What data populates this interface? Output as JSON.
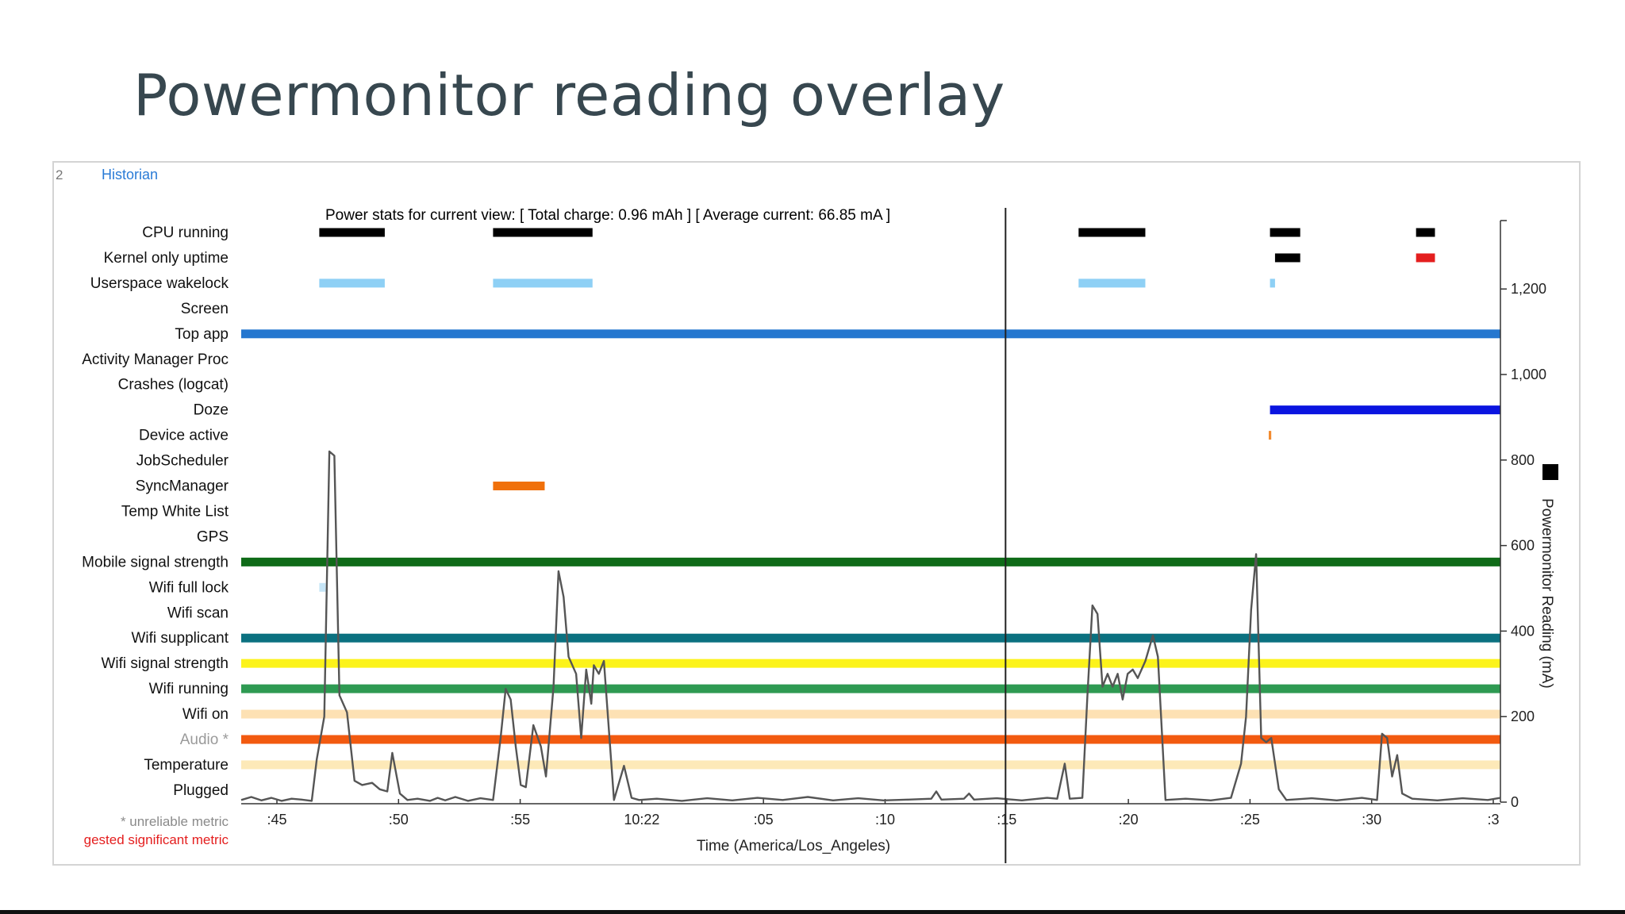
{
  "slide": {
    "title": "Powermonitor reading overlay"
  },
  "historian": {
    "tab_number": "2",
    "tab_label": "Historian",
    "power_stats": "Power stats for current view: [ Total charge: 0.96 mAh ] [ Average current: 66.85 mA ]",
    "footnote_unreliable": "* unreliable metric",
    "footnote_suggested": "gested significant metric",
    "x_axis_title": "Time (America/Los_Angeles)",
    "y_axis_title": "Powermonitor Reading (mA)"
  },
  "chart_data": {
    "type": "line",
    "title": "Power stats for current view: [ Total charge: 0.96 mAh ] [ Average current: 66.85 mA ]",
    "xlabel": "Time (America/Los_Angeles)",
    "ylabel": "Powermonitor Reading (mA)",
    "x_ticks": [
      ":45",
      ":50",
      ":55",
      "10:22",
      ":05",
      ":10",
      ":15",
      ":20",
      ":25",
      ":30",
      ":3"
    ],
    "y_ticks": [
      "0",
      "200",
      "400",
      "600",
      "800",
      "1,000",
      "1,200"
    ],
    "ylim": [
      0,
      1360
    ],
    "xlim": [
      0,
      100
    ],
    "grid": false,
    "cursor_x": 60.7,
    "series": [
      {
        "name": "Powermonitor Reading (mA)",
        "color": "#555555",
        "points": [
          [
            0,
            5
          ],
          [
            0.8,
            12
          ],
          [
            1.6,
            4
          ],
          [
            2.4,
            10
          ],
          [
            3.2,
            3
          ],
          [
            4.0,
            8
          ],
          [
            4.8,
            6
          ],
          [
            5.6,
            3
          ],
          [
            6.0,
            100
          ],
          [
            6.6,
            200
          ],
          [
            7.0,
            820
          ],
          [
            7.4,
            810
          ],
          [
            7.8,
            250
          ],
          [
            8.4,
            210
          ],
          [
            9.0,
            50
          ],
          [
            9.6,
            40
          ],
          [
            10.4,
            45
          ],
          [
            11.0,
            30
          ],
          [
            11.6,
            25
          ],
          [
            12.0,
            115
          ],
          [
            12.6,
            20
          ],
          [
            13.2,
            5
          ],
          [
            14.0,
            8
          ],
          [
            15.0,
            3
          ],
          [
            15.6,
            10
          ],
          [
            16.2,
            4
          ],
          [
            17.0,
            12
          ],
          [
            18.0,
            3
          ],
          [
            19.0,
            9
          ],
          [
            20.0,
            5
          ],
          [
            20.6,
            150
          ],
          [
            21.0,
            265
          ],
          [
            21.4,
            240
          ],
          [
            21.8,
            130
          ],
          [
            22.2,
            40
          ],
          [
            22.6,
            35
          ],
          [
            23.2,
            180
          ],
          [
            23.8,
            130
          ],
          [
            24.2,
            60
          ],
          [
            24.8,
            270
          ],
          [
            25.2,
            540
          ],
          [
            25.6,
            480
          ],
          [
            26.0,
            340
          ],
          [
            26.6,
            300
          ],
          [
            27.0,
            150
          ],
          [
            27.4,
            310
          ],
          [
            27.8,
            230
          ],
          [
            28.0,
            320
          ],
          [
            28.4,
            300
          ],
          [
            28.8,
            330
          ],
          [
            29.6,
            5
          ],
          [
            30.4,
            85
          ],
          [
            31.0,
            10
          ],
          [
            31.6,
            5
          ],
          [
            33.0,
            8
          ],
          [
            35.0,
            3
          ],
          [
            37.0,
            9
          ],
          [
            39.0,
            4
          ],
          [
            41.0,
            10
          ],
          [
            43.0,
            5
          ],
          [
            45.0,
            12
          ],
          [
            47.0,
            4
          ],
          [
            49.0,
            9
          ],
          [
            51.0,
            4
          ],
          [
            53.0,
            6
          ],
          [
            54.8,
            8
          ],
          [
            55.2,
            25
          ],
          [
            55.6,
            6
          ],
          [
            57.4,
            8
          ],
          [
            57.8,
            20
          ],
          [
            58.2,
            6
          ],
          [
            60.0,
            9
          ],
          [
            62.0,
            4
          ],
          [
            64.0,
            10
          ],
          [
            64.8,
            8
          ],
          [
            65.4,
            90
          ],
          [
            65.8,
            8
          ],
          [
            66.8,
            10
          ],
          [
            67.2,
            250
          ],
          [
            67.6,
            460
          ],
          [
            68.0,
            440
          ],
          [
            68.4,
            270
          ],
          [
            68.8,
            300
          ],
          [
            69.2,
            270
          ],
          [
            69.6,
            300
          ],
          [
            70.0,
            240
          ],
          [
            70.4,
            300
          ],
          [
            70.8,
            310
          ],
          [
            71.2,
            290
          ],
          [
            71.8,
            330
          ],
          [
            72.4,
            390
          ],
          [
            72.8,
            340
          ],
          [
            73.4,
            5
          ],
          [
            75.0,
            8
          ],
          [
            77.0,
            4
          ],
          [
            78.6,
            10
          ],
          [
            79.4,
            90
          ],
          [
            79.8,
            200
          ],
          [
            80.2,
            450
          ],
          [
            80.6,
            580
          ],
          [
            81.0,
            150
          ],
          [
            81.4,
            140
          ],
          [
            81.8,
            150
          ],
          [
            82.4,
            30
          ],
          [
            83.0,
            5
          ],
          [
            85.0,
            9
          ],
          [
            87.0,
            4
          ],
          [
            89.0,
            10
          ],
          [
            90.2,
            5
          ],
          [
            90.6,
            160
          ],
          [
            91.0,
            150
          ],
          [
            91.4,
            60
          ],
          [
            91.8,
            110
          ],
          [
            92.2,
            20
          ],
          [
            93.0,
            8
          ],
          [
            95.0,
            4
          ],
          [
            97.0,
            9
          ],
          [
            99.0,
            5
          ],
          [
            100,
            10
          ]
        ]
      }
    ]
  },
  "rows": [
    {
      "label": "CPU running",
      "color": "#000000",
      "segments": [
        [
          6.2,
          11.4
        ],
        [
          20.0,
          27.9
        ],
        [
          66.5,
          71.8
        ],
        [
          81.7,
          84.1
        ],
        [
          93.3,
          94.8
        ]
      ]
    },
    {
      "label": "Kernel only uptime",
      "color": "#000000",
      "segments": [
        [
          82.1,
          84.1
        ]
      ],
      "extra": {
        "color": "#e41e1e",
        "segments": [
          [
            93.3,
            94.8
          ]
        ]
      }
    },
    {
      "label": "Userspace wakelock",
      "color": "#8ed0f5",
      "segments": [
        [
          6.2,
          11.4
        ],
        [
          20.0,
          27.9
        ],
        [
          66.5,
          71.8
        ],
        [
          81.7,
          82.1
        ]
      ]
    },
    {
      "label": "Screen",
      "color": "#000000",
      "segments": []
    },
    {
      "label": "Top app",
      "color": "#2577cf",
      "segments": [
        [
          0,
          100
        ]
      ]
    },
    {
      "label": "Activity Manager Proc",
      "color": "#000000",
      "segments": []
    },
    {
      "label": "Crashes (logcat)",
      "color": "#000000",
      "segments": []
    },
    {
      "label": "Doze",
      "color": "#0a14e0",
      "segments": [
        [
          81.7,
          100
        ]
      ]
    },
    {
      "label": "Device active",
      "color": "#f28b30",
      "segments": [
        [
          81.6,
          81.8
        ]
      ]
    },
    {
      "label": "JobScheduler",
      "color": "#000000",
      "segments": []
    },
    {
      "label": "SyncManager",
      "color": "#f0700a",
      "segments": [
        [
          20.0,
          24.1
        ]
      ]
    },
    {
      "label": "Temp White List",
      "color": "#000000",
      "segments": []
    },
    {
      "label": "GPS",
      "color": "#000000",
      "segments": []
    },
    {
      "label": "Mobile signal strength",
      "color": "#0f6b18",
      "segments": [
        [
          0,
          100
        ]
      ]
    },
    {
      "label": "Wifi full lock",
      "color": "#c6e5f7",
      "segments": [
        [
          6.2,
          6.7
        ]
      ]
    },
    {
      "label": "Wifi scan",
      "color": "#000000",
      "segments": []
    },
    {
      "label": "Wifi supplicant",
      "color": "#0b7180",
      "segments": [
        [
          0,
          100
        ]
      ]
    },
    {
      "label": "Wifi signal strength",
      "color": "#fcf31a",
      "segments": [
        [
          0,
          100
        ]
      ]
    },
    {
      "label": "Wifi running",
      "color": "#2e9a52",
      "segments": [
        [
          0,
          100
        ]
      ]
    },
    {
      "label": "Wifi on",
      "color": "#fde1b4",
      "segments": [
        [
          0,
          100
        ]
      ]
    },
    {
      "label": "Audio *",
      "color": "#f25a10",
      "segments": [
        [
          0,
          100
        ]
      ],
      "label_color": "#9a9a9a"
    },
    {
      "label": "Temperature",
      "color": "#fde9b8",
      "segments": [
        [
          0,
          100
        ]
      ]
    },
    {
      "label": "Plugged",
      "color": "#000000",
      "segments": []
    }
  ],
  "colors": {
    "title": "#37474f",
    "accent_link": "#2a7bd6",
    "footnote_red": "#e41e1e",
    "footnote_grey": "#8a8a8a"
  }
}
